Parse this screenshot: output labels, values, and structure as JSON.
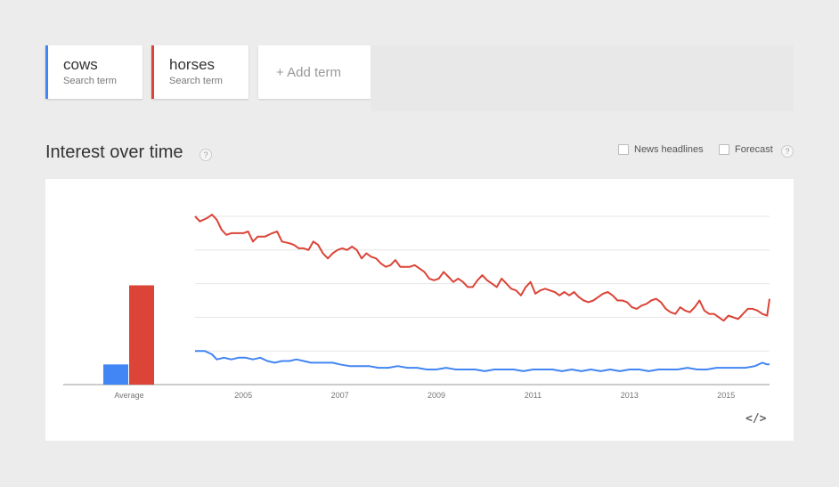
{
  "terms": [
    {
      "name": "cows",
      "sub": "Search term",
      "color": "#4285f4"
    },
    {
      "name": "horses",
      "sub": "Search term",
      "color": "#db4437"
    }
  ],
  "add_term": {
    "label": "+ Add term"
  },
  "section": {
    "title": "Interest over time",
    "help": "?"
  },
  "options": {
    "news": "News headlines",
    "forecast": "Forecast",
    "help": "?"
  },
  "embed": {
    "label": "</>"
  },
  "chart_data": {
    "type": "line",
    "average": {
      "label": "Average",
      "values": [
        {
          "name": "cows",
          "value": 12
        },
        {
          "name": "horses",
          "value": 59
        }
      ]
    },
    "x_ticks": [
      "2005",
      "2007",
      "2009",
      "2011",
      "2013",
      "2015"
    ],
    "x_range": [
      2004.0,
      2015.9
    ],
    "ylim": [
      0,
      100
    ],
    "grid": true,
    "series": [
      {
        "name": "horses",
        "color": "#db4437",
        "points": [
          [
            2004.0,
            100
          ],
          [
            2004.1,
            97
          ],
          [
            2004.25,
            99
          ],
          [
            2004.35,
            101
          ],
          [
            2004.45,
            98
          ],
          [
            2004.55,
            92
          ],
          [
            2004.65,
            89
          ],
          [
            2004.75,
            90
          ],
          [
            2004.9,
            90
          ],
          [
            2005.0,
            90
          ],
          [
            2005.1,
            91
          ],
          [
            2005.2,
            85
          ],
          [
            2005.3,
            88
          ],
          [
            2005.45,
            88
          ],
          [
            2005.6,
            90
          ],
          [
            2005.7,
            91
          ],
          [
            2005.8,
            85
          ],
          [
            2005.95,
            84
          ],
          [
            2006.05,
            83
          ],
          [
            2006.15,
            81
          ],
          [
            2006.25,
            81
          ],
          [
            2006.35,
            80
          ],
          [
            2006.45,
            85
          ],
          [
            2006.55,
            83
          ],
          [
            2006.65,
            78
          ],
          [
            2006.75,
            75
          ],
          [
            2006.85,
            78
          ],
          [
            2006.95,
            80
          ],
          [
            2007.05,
            81
          ],
          [
            2007.15,
            80
          ],
          [
            2007.25,
            82
          ],
          [
            2007.35,
            80
          ],
          [
            2007.45,
            75
          ],
          [
            2007.55,
            78
          ],
          [
            2007.65,
            76
          ],
          [
            2007.75,
            75
          ],
          [
            2007.85,
            72
          ],
          [
            2007.95,
            70
          ],
          [
            2008.05,
            71
          ],
          [
            2008.15,
            74
          ],
          [
            2008.25,
            70
          ],
          [
            2008.35,
            70
          ],
          [
            2008.45,
            70
          ],
          [
            2008.55,
            71
          ],
          [
            2008.65,
            69
          ],
          [
            2008.75,
            67
          ],
          [
            2008.85,
            63
          ],
          [
            2008.95,
            62
          ],
          [
            2009.05,
            63
          ],
          [
            2009.15,
            67
          ],
          [
            2009.25,
            64
          ],
          [
            2009.35,
            61
          ],
          [
            2009.45,
            63
          ],
          [
            2009.55,
            61
          ],
          [
            2009.65,
            58
          ],
          [
            2009.75,
            58
          ],
          [
            2009.85,
            62
          ],
          [
            2009.95,
            65
          ],
          [
            2010.05,
            62
          ],
          [
            2010.15,
            60
          ],
          [
            2010.25,
            58
          ],
          [
            2010.35,
            63
          ],
          [
            2010.45,
            60
          ],
          [
            2010.55,
            57
          ],
          [
            2010.65,
            56
          ],
          [
            2010.75,
            53
          ],
          [
            2010.85,
            58
          ],
          [
            2010.95,
            61
          ],
          [
            2011.05,
            54
          ],
          [
            2011.15,
            56
          ],
          [
            2011.25,
            57
          ],
          [
            2011.35,
            56
          ],
          [
            2011.45,
            55
          ],
          [
            2011.55,
            53
          ],
          [
            2011.65,
            55
          ],
          [
            2011.75,
            53
          ],
          [
            2011.85,
            55
          ],
          [
            2011.95,
            52
          ],
          [
            2012.05,
            50
          ],
          [
            2012.15,
            49
          ],
          [
            2012.25,
            50
          ],
          [
            2012.35,
            52
          ],
          [
            2012.45,
            54
          ],
          [
            2012.55,
            55
          ],
          [
            2012.65,
            53
          ],
          [
            2012.75,
            50
          ],
          [
            2012.85,
            50
          ],
          [
            2012.95,
            49
          ],
          [
            2013.05,
            46
          ],
          [
            2013.15,
            45
          ],
          [
            2013.25,
            47
          ],
          [
            2013.35,
            48
          ],
          [
            2013.45,
            50
          ],
          [
            2013.55,
            51
          ],
          [
            2013.65,
            49
          ],
          [
            2013.75,
            45
          ],
          [
            2013.85,
            43
          ],
          [
            2013.95,
            42
          ],
          [
            2014.05,
            46
          ],
          [
            2014.15,
            44
          ],
          [
            2014.25,
            43
          ],
          [
            2014.35,
            46
          ],
          [
            2014.45,
            50
          ],
          [
            2014.55,
            44
          ],
          [
            2014.65,
            42
          ],
          [
            2014.75,
            42
          ],
          [
            2014.85,
            40
          ],
          [
            2014.95,
            38
          ],
          [
            2015.05,
            41
          ],
          [
            2015.15,
            40
          ],
          [
            2015.25,
            39
          ],
          [
            2015.35,
            42
          ],
          [
            2015.45,
            45
          ],
          [
            2015.55,
            45
          ],
          [
            2015.65,
            44
          ],
          [
            2015.75,
            42
          ],
          [
            2015.85,
            41
          ],
          [
            2015.9,
            51
          ]
        ]
      },
      {
        "name": "cows",
        "color": "#4285f4",
        "points": [
          [
            2004.0,
            20
          ],
          [
            2004.2,
            20
          ],
          [
            2004.35,
            18
          ],
          [
            2004.45,
            15
          ],
          [
            2004.6,
            16
          ],
          [
            2004.75,
            15
          ],
          [
            2004.9,
            16
          ],
          [
            2005.05,
            16
          ],
          [
            2005.2,
            15
          ],
          [
            2005.35,
            16
          ],
          [
            2005.5,
            14
          ],
          [
            2005.65,
            13
          ],
          [
            2005.8,
            14
          ],
          [
            2005.95,
            14
          ],
          [
            2006.1,
            15
          ],
          [
            2006.25,
            14
          ],
          [
            2006.4,
            13
          ],
          [
            2006.55,
            13
          ],
          [
            2006.7,
            13
          ],
          [
            2006.85,
            13
          ],
          [
            2007.0,
            12
          ],
          [
            2007.2,
            11
          ],
          [
            2007.4,
            11
          ],
          [
            2007.6,
            11
          ],
          [
            2007.8,
            10
          ],
          [
            2008.0,
            10
          ],
          [
            2008.2,
            11
          ],
          [
            2008.4,
            10
          ],
          [
            2008.6,
            10
          ],
          [
            2008.8,
            9
          ],
          [
            2009.0,
            9
          ],
          [
            2009.2,
            10
          ],
          [
            2009.4,
            9
          ],
          [
            2009.6,
            9
          ],
          [
            2009.8,
            9
          ],
          [
            2010.0,
            8
          ],
          [
            2010.2,
            9
          ],
          [
            2010.4,
            9
          ],
          [
            2010.6,
            9
          ],
          [
            2010.8,
            8
          ],
          [
            2011.0,
            9
          ],
          [
            2011.2,
            9
          ],
          [
            2011.4,
            9
          ],
          [
            2011.6,
            8
          ],
          [
            2011.8,
            9
          ],
          [
            2012.0,
            8
          ],
          [
            2012.2,
            9
          ],
          [
            2012.4,
            8
          ],
          [
            2012.6,
            9
          ],
          [
            2012.8,
            8
          ],
          [
            2013.0,
            9
          ],
          [
            2013.2,
            9
          ],
          [
            2013.4,
            8
          ],
          [
            2013.6,
            9
          ],
          [
            2013.8,
            9
          ],
          [
            2014.0,
            9
          ],
          [
            2014.2,
            10
          ],
          [
            2014.4,
            9
          ],
          [
            2014.6,
            9
          ],
          [
            2014.8,
            10
          ],
          [
            2015.0,
            10
          ],
          [
            2015.2,
            10
          ],
          [
            2015.4,
            10
          ],
          [
            2015.6,
            11
          ],
          [
            2015.75,
            13
          ],
          [
            2015.85,
            12
          ],
          [
            2015.9,
            12
          ]
        ]
      }
    ]
  }
}
